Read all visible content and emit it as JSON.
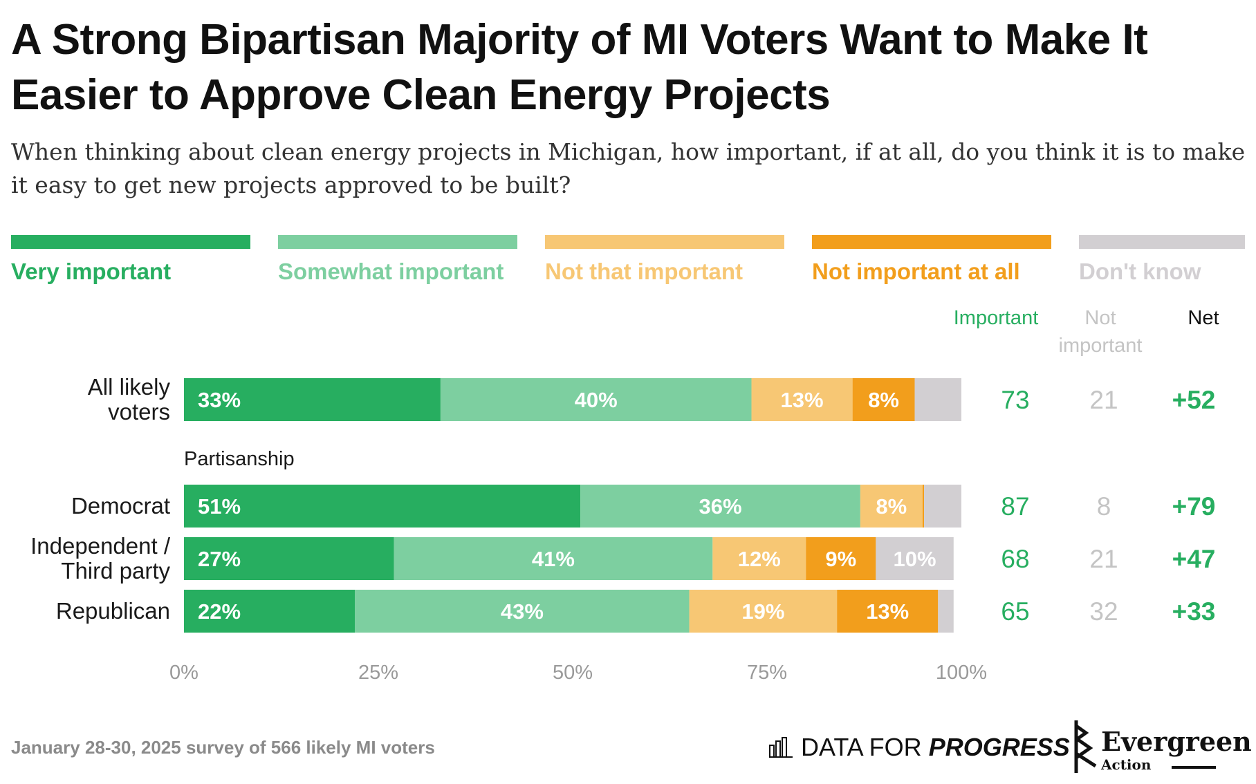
{
  "title": "A Strong Bipartisan Majority of MI Voters Want to Make It Easier to Approve Clean Energy Projects",
  "subtitle": "When thinking about clean energy projects in Michigan, how important, if at all, do you think it is to make it easy to get new projects approved to be built?",
  "legend": [
    {
      "label": "Very important",
      "color": "#27ae60"
    },
    {
      "label": "Somewhat important",
      "color": "#7dcfa0"
    },
    {
      "label": "Not that important",
      "color": "#f7c774"
    },
    {
      "label": "Not important at all",
      "color": "#f29e1c"
    },
    {
      "label": "Don't know",
      "color": "#d2cfd2"
    }
  ],
  "columns": {
    "important": "Important",
    "not_important": "Not important",
    "net": "Net",
    "important_color": "#27ae60",
    "not_important_color": "#c4c4c4",
    "net_color": "#111111"
  },
  "chart_data": {
    "type": "bar",
    "orientation": "horizontal",
    "stacked": true,
    "xlim": [
      0,
      100
    ],
    "x_ticks": [
      "0%",
      "25%",
      "50%",
      "75%",
      "100%"
    ],
    "group_label": "Partisanship",
    "categories": [
      "All likely voters",
      "Democrat",
      "Independent / Third party",
      "Republican"
    ],
    "series": [
      {
        "name": "Very important",
        "values": [
          33,
          51,
          27,
          22
        ],
        "labels": [
          "33%",
          "51%",
          "27%",
          "22%"
        ]
      },
      {
        "name": "Somewhat important",
        "values": [
          40,
          36,
          41,
          43
        ],
        "labels": [
          "40%",
          "36%",
          "41%",
          "43%"
        ]
      },
      {
        "name": "Not that important",
        "values": [
          13,
          8,
          12,
          19
        ],
        "labels": [
          "13%",
          "8%",
          "12%",
          "19%"
        ]
      },
      {
        "name": "Not important at all",
        "values": [
          8,
          0.2,
          9,
          13
        ],
        "labels": [
          "8%",
          "",
          "9%",
          "13%"
        ]
      },
      {
        "name": "Don't know",
        "values": [
          6,
          5,
          10,
          2
        ],
        "labels": [
          "",
          "",
          "10%",
          ""
        ]
      }
    ],
    "important": [
      "73",
      "87",
      "68",
      "65"
    ],
    "not_important": [
      "21",
      "8",
      "21",
      "32"
    ],
    "net": [
      "+52",
      "+79",
      "+47",
      "+33"
    ]
  },
  "footer": {
    "source": "January 28-30, 2025 survey of 566 likely MI voters",
    "dfp_regular": "DATA FOR",
    "dfp_bold": "PROGRESS",
    "ev_name": "Evergreen",
    "ev_sub": "Action"
  }
}
